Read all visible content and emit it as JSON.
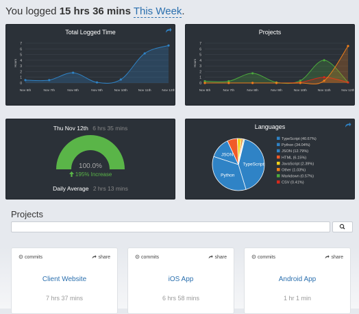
{
  "header": {
    "prefix": "You logged ",
    "total": "15 hrs 36 mins",
    "range_link": "This Week",
    "suffix": "."
  },
  "colors": {
    "blue": "#2f83c6",
    "green": "#4caa3d",
    "red": "#d9291c",
    "orange": "#f07f1a",
    "panel_bg": "#2b3138",
    "link": "#2a6fae"
  },
  "chart_data": [
    {
      "type": "line",
      "title": "Total Logged Time",
      "ylabel": "Hours",
      "categories": [
        "Nov 6th",
        "Nov 7th",
        "Nov 8th",
        "Nov 9th",
        "Nov 10th",
        "Nov 11th",
        "Nov 12th"
      ],
      "yticks": [
        "0",
        "1",
        "2",
        "3",
        "4",
        "5",
        "6",
        "7"
      ],
      "ylim": [
        0,
        7
      ],
      "series": [
        {
          "values": [
            0.5,
            0.5,
            1.8,
            0.1,
            0.6,
            5.2,
            6.6
          ]
        }
      ],
      "grid": true
    },
    {
      "type": "line",
      "title": "Projects",
      "ylabel": "Hours",
      "categories": [
        "Nov 6th",
        "Nov 7th",
        "Nov 8th",
        "Nov 9th",
        "Nov 10th",
        "Nov 11th",
        "Nov 12th"
      ],
      "yticks": [
        "0",
        "1",
        "2",
        "3",
        "4",
        "5",
        "6",
        "7"
      ],
      "ylim": [
        0,
        7
      ],
      "series": [
        {
          "color": "#4caa3d",
          "values": [
            0.3,
            0.3,
            1.7,
            0.1,
            0.4,
            4.0,
            0.1
          ]
        },
        {
          "color": "#d9291c",
          "values": [
            0.0,
            0.0,
            0.0,
            0.0,
            0.1,
            1.0,
            0.1
          ]
        },
        {
          "color": "#f07f1a",
          "values": [
            0.0,
            0.0,
            0.0,
            0.0,
            0.0,
            0.4,
            6.5
          ]
        }
      ],
      "grid": true
    },
    {
      "type": "pie",
      "title": "Languages",
      "slices": [
        {
          "label": "TypeScript (40.67%)",
          "short": "TypeScript",
          "value": 40.67,
          "color": "#2f83c6"
        },
        {
          "label": "Python (34.04%)",
          "short": "Python",
          "value": 34.04,
          "color": "#2f83c6"
        },
        {
          "label": "JSON (12.79%)",
          "short": "JSON",
          "value": 12.79,
          "color": "#2f83c6"
        },
        {
          "label": "HTML (6.15%)",
          "short": "",
          "value": 6.15,
          "color": "#f05a28"
        },
        {
          "label": "JavaScript (2.39%)",
          "short": "",
          "value": 2.39,
          "color": "#f2d31b"
        },
        {
          "label": "Other (1.03%)",
          "short": "",
          "value": 1.03,
          "color": "#f07f1a"
        },
        {
          "label": "Markdown (0.57%)",
          "short": "",
          "value": 0.57,
          "color": "#4caa3d"
        },
        {
          "label": "CSV (0.41%)",
          "short": "",
          "value": 0.41,
          "color": "#d9291c"
        }
      ],
      "legend": "right"
    }
  ],
  "gauge": {
    "date": "Thu Nov 12th",
    "date_time": "6 hrs 35 mins",
    "percent": "100.0%",
    "fill": 1.0,
    "increase": "195% Increase",
    "avg_label": "Daily Average",
    "avg_value": "2 hrs 13 mins"
  },
  "projects": {
    "title": "Projects",
    "search_placeholder": "",
    "cards": [
      {
        "commits": "commits",
        "share": "share",
        "name": "Client Website",
        "time": "7 hrs 37 mins"
      },
      {
        "commits": "commits",
        "share": "share",
        "name": "iOS App",
        "time": "6 hrs 58 mins"
      },
      {
        "commits": "commits",
        "share": "share",
        "name": "Android App",
        "time": "1 hr 1 min"
      }
    ]
  }
}
